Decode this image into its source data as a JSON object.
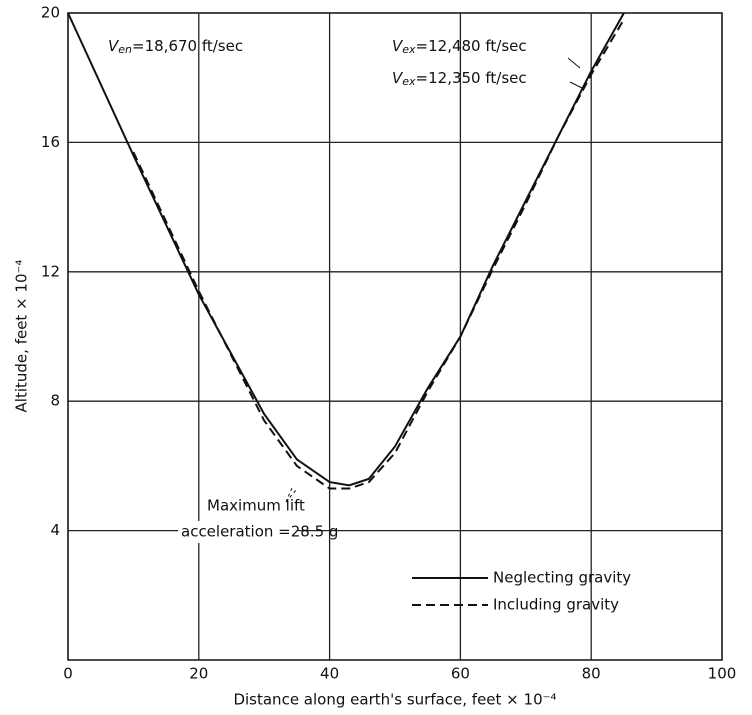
{
  "chart_data": {
    "type": "line",
    "xlabel": "Distance along earth's surface, feet × 10⁻⁴",
    "ylabel": "Altitude, feet × 10⁻⁴",
    "x": [
      0,
      10,
      20,
      30,
      35,
      40,
      43,
      46,
      50,
      55,
      60,
      65,
      70,
      75,
      80,
      85
    ],
    "series": [
      {
        "name": "Neglecting gravity",
        "color": "#111111",
        "dash": false,
        "values": [
          20,
          15.6,
          11.3,
          7.6,
          6.2,
          5.5,
          5.4,
          5.6,
          6.6,
          8.4,
          10,
          12.2,
          14.2,
          16.2,
          18.2,
          20
        ]
      },
      {
        "name": "Including gravity",
        "color": "#111111",
        "dash": true,
        "values": [
          null,
          15.7,
          11.4,
          7.4,
          6.0,
          5.3,
          5.3,
          5.5,
          6.4,
          8.3,
          10,
          12.1,
          14.1,
          16.2,
          18.1,
          19.8
        ]
      }
    ],
    "annotations": [
      {
        "symbol": "V",
        "subscript": "en",
        "text": "=18,670 ft/sec"
      },
      {
        "symbol": "V",
        "subscript": "ex",
        "text": "=12,480 ft/sec"
      },
      {
        "symbol": "V",
        "subscript": "ex",
        "text": "=12,350 ft/sec"
      },
      {
        "text": "Maximum lift"
      },
      {
        "text": "acceleration =28.5 g"
      }
    ],
    "xlim": [
      0,
      100
    ],
    "xticks": [
      0,
      20,
      40,
      60,
      80,
      100
    ],
    "ylim": [
      0,
      20
    ],
    "yticks": [
      4,
      8,
      12,
      16,
      20
    ],
    "grid": true,
    "legend": "lower right"
  }
}
